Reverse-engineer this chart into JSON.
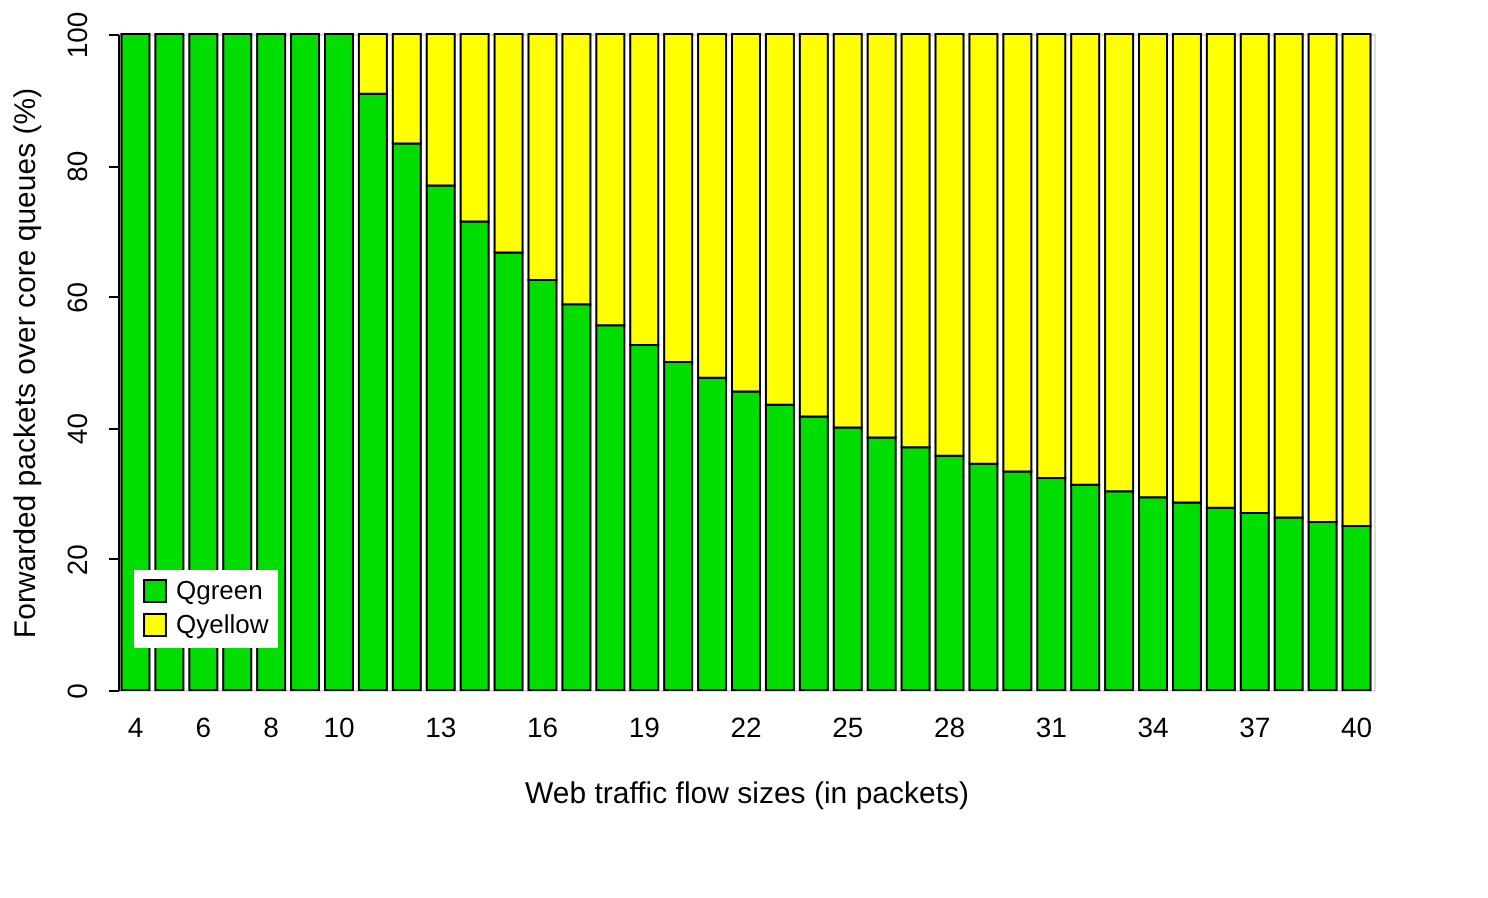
{
  "chart_data": {
    "type": "bar",
    "stacked": true,
    "xlabel": "Web traffic flow sizes (in packets)",
    "ylabel": "Forwarded packets over core queues (%)",
    "categories": [
      "4",
      null,
      "6",
      null,
      "8",
      null,
      "10",
      null,
      null,
      "13",
      null,
      null,
      "16",
      null,
      null,
      "19",
      null,
      null,
      "22",
      null,
      null,
      "25",
      null,
      null,
      "28",
      null,
      null,
      "31",
      null,
      null,
      "34",
      null,
      null,
      "37",
      null,
      null,
      "40"
    ],
    "series": [
      {
        "name": "Qgreen",
        "color": "#00dd00",
        "values": [
          100,
          100,
          100,
          100,
          100,
          100,
          100,
          90.9,
          83.3,
          76.9,
          71.4,
          66.7,
          62.5,
          58.8,
          55.6,
          52.6,
          50,
          47.6,
          45.5,
          43.5,
          41.7,
          40,
          38.5,
          37,
          35.7,
          34.5,
          33.3,
          32.3,
          31.3,
          30.3,
          29.4,
          28.6,
          27.8,
          27,
          26.3,
          25.6,
          25
        ]
      },
      {
        "name": "Qyellow",
        "color": "#ffff00",
        "values": [
          null,
          null,
          null,
          null,
          null,
          null,
          null,
          9.1,
          16.7,
          23.1,
          28.6,
          33.3,
          37.5,
          41.2,
          44.4,
          47.4,
          50,
          52.4,
          54.5,
          56.5,
          58.3,
          60,
          61.5,
          63,
          64.3,
          65.5,
          66.7,
          67.7,
          68.7,
          69.7,
          70.6,
          71.4,
          72.2,
          73,
          73.7,
          74.4,
          75
        ]
      }
    ],
    "ylim": [
      0,
      100
    ],
    "yticks": [
      0,
      20,
      40,
      60,
      80,
      100
    ],
    "grid": false,
    "legend": "bottom left"
  }
}
